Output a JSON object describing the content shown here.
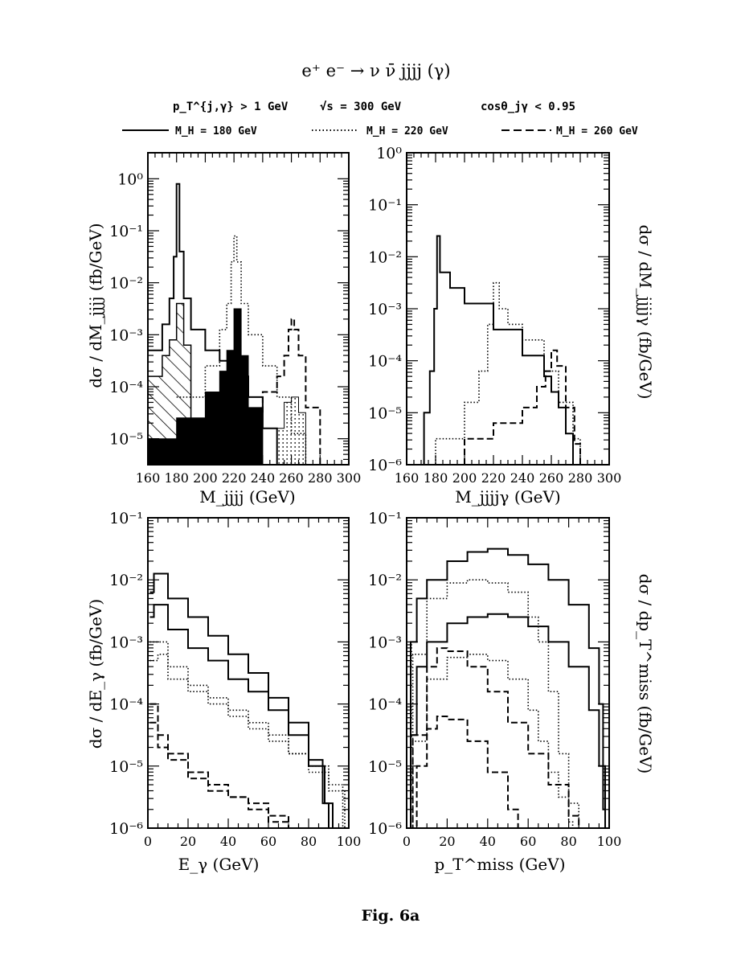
{
  "header": {
    "title": "e⁺ e⁻ → ν ν̄ jjjj (γ)",
    "cut_pt": "p_T^{j,γ} > 1 GeV",
    "cut_sqrt_s": "√s = 300 GeV",
    "cut_cos": "cosθ_jγ < 0.95"
  },
  "legend": [
    {
      "label": "M_H = 180 GeV",
      "style": "solid"
    },
    {
      "label": "M_H = 220 GeV",
      "style": "dotted"
    },
    {
      "label": "M_H = 260 GeV",
      "style": "dashed"
    }
  ],
  "caption": "Fig. 6a",
  "chart_data": [
    {
      "type": "line",
      "id": "mjjjj",
      "xlabel": "M_jjjj (GeV)",
      "ylabel": "dσ / dM_jjjj (fb/GeV)",
      "xlim": [
        160,
        300
      ],
      "ylim_log10": [
        -5.5,
        0.5
      ],
      "yscale": "log",
      "xticks": [
        160,
        180,
        200,
        220,
        240,
        260,
        280,
        300
      ],
      "yticks": [
        {
          "label": "10⁰",
          "exp": 0
        },
        {
          "label": "10⁻¹",
          "exp": -1
        },
        {
          "label": "10⁻²",
          "exp": -2
        },
        {
          "label": "10⁻³",
          "exp": -3
        },
        {
          "label": "10⁻⁴",
          "exp": -4
        },
        {
          "label": "10⁻⁵",
          "exp": -5
        }
      ],
      "series": [
        {
          "name": "M_H = 180 GeV",
          "style": "solid",
          "x": [
            160,
            170,
            175,
            178,
            180,
            182,
            185,
            190,
            200,
            210,
            220,
            230,
            240,
            250
          ],
          "log10_y": [
            -3.3,
            -2.8,
            -2.3,
            -1.5,
            -0.1,
            -1.4,
            -2.3,
            -2.9,
            -3.3,
            -3.5,
            -3.8,
            -4.2,
            -4.8,
            -5.5
          ]
        },
        {
          "name": "M_H = 220 GeV",
          "style": "dotted",
          "x": [
            180,
            200,
            210,
            215,
            218,
            220,
            222,
            225,
            230,
            240,
            250,
            260,
            270
          ],
          "log10_y": [
            -4.2,
            -3.6,
            -2.9,
            -2.4,
            -1.6,
            -1.1,
            -1.6,
            -2.4,
            -3.0,
            -3.6,
            -4.2,
            -4.9,
            -5.5
          ]
        },
        {
          "name": "M_H = 260 GeV",
          "style": "dashed",
          "x": [
            220,
            240,
            250,
            255,
            258,
            260,
            262,
            265,
            270,
            280
          ],
          "log10_y": [
            -4.5,
            -4.1,
            -3.8,
            -3.4,
            -2.9,
            -2.7,
            -2.9,
            -3.4,
            -4.4,
            -5.5
          ]
        },
        {
          "name": "hatched",
          "style": "hatched",
          "x": [
            160,
            170,
            175,
            180,
            185,
            190
          ],
          "log10_y": [
            -3.8,
            -3.4,
            -3.1,
            -2.4,
            -3.2,
            -4.0
          ]
        },
        {
          "name": "filled",
          "style": "filled",
          "x": [
            160,
            180,
            200,
            210,
            215,
            220,
            225,
            230,
            240
          ],
          "log10_y": [
            -5.0,
            -4.6,
            -4.1,
            -3.7,
            -3.3,
            -2.5,
            -3.4,
            -4.4,
            -5.5
          ]
        },
        {
          "name": "dotted-fill",
          "style": "dotfill",
          "x": [
            240,
            250,
            255,
            260,
            265,
            270
          ],
          "log10_y": [
            -5.5,
            -4.8,
            -4.3,
            -4.2,
            -4.5,
            -5.5
          ]
        }
      ]
    },
    {
      "type": "line",
      "id": "mjjjjg",
      "xlabel": "M_jjjjγ (GeV)",
      "ylabel": "dσ / dM_jjjjγ (fb/GeV)",
      "xlim": [
        160,
        300
      ],
      "ylim_log10": [
        -6,
        0
      ],
      "yscale": "log",
      "xticks": [
        160,
        180,
        200,
        220,
        240,
        260,
        280,
        300
      ],
      "yticks": [
        {
          "label": "10⁰",
          "exp": 0
        },
        {
          "label": "10⁻¹",
          "exp": -1
        },
        {
          "label": "10⁻²",
          "exp": -2
        },
        {
          "label": "10⁻³",
          "exp": -3
        },
        {
          "label": "10⁻⁴",
          "exp": -4
        },
        {
          "label": "10⁻⁵",
          "exp": -5
        },
        {
          "label": "10⁻⁶",
          "exp": -6
        }
      ],
      "series": [
        {
          "name": "M_H = 180 GeV",
          "style": "solid",
          "x": [
            167,
            172,
            176,
            179,
            181,
            183,
            190,
            200,
            220,
            240,
            255,
            260,
            265,
            270,
            275
          ],
          "log10_y": [
            -6.0,
            -5.0,
            -4.2,
            -3.0,
            -1.6,
            -2.3,
            -2.6,
            -2.9,
            -3.4,
            -3.9,
            -4.3,
            -4.6,
            -4.9,
            -5.4,
            -6.0
          ]
        },
        {
          "name": "M_H = 220 GeV",
          "style": "dotted",
          "x": [
            165,
            180,
            200,
            210,
            216,
            220,
            224,
            230,
            240,
            255,
            265,
            275,
            280
          ],
          "log10_y": [
            -6.0,
            -5.5,
            -4.8,
            -4.2,
            -3.3,
            -2.5,
            -3.0,
            -3.3,
            -3.6,
            -4.2,
            -4.8,
            -5.5,
            -6.0
          ]
        },
        {
          "name": "M_H = 260 GeV",
          "style": "dashed",
          "x": [
            180,
            200,
            220,
            240,
            250,
            256,
            260,
            264,
            270,
            276,
            280
          ],
          "log10_y": [
            -6.0,
            -5.5,
            -5.2,
            -4.9,
            -4.5,
            -4.2,
            -3.8,
            -4.1,
            -4.9,
            -5.6,
            -6.0
          ]
        }
      ]
    },
    {
      "type": "line",
      "id": "egamma",
      "xlabel": "E_γ (GeV)",
      "ylabel": "dσ / dE_γ (fb/GeV)",
      "xlim": [
        0,
        100
      ],
      "ylim_log10": [
        -6,
        -1
      ],
      "yscale": "log",
      "xticks": [
        0,
        20,
        40,
        60,
        80,
        100
      ],
      "yticks": [
        {
          "label": "10⁻¹",
          "exp": -1
        },
        {
          "label": "10⁻²",
          "exp": -2
        },
        {
          "label": "10⁻³",
          "exp": -3
        },
        {
          "label": "10⁻⁴",
          "exp": -4
        },
        {
          "label": "10⁻⁵",
          "exp": -5
        },
        {
          "label": "10⁻⁶",
          "exp": -6
        }
      ],
      "series": [
        {
          "name": "M_H = 180 GeV",
          "style": "solid",
          "x": [
            1,
            3,
            10,
            20,
            30,
            40,
            50,
            60,
            70,
            80,
            87,
            90
          ],
          "log10_y": [
            -2.2,
            -1.9,
            -2.3,
            -2.6,
            -2.9,
            -3.2,
            -3.5,
            -3.9,
            -4.3,
            -4.9,
            -5.6,
            -6.0
          ]
        },
        {
          "name": "M_H = 180 GeV (b)",
          "style": "solid",
          "x": [
            1,
            3,
            10,
            20,
            30,
            40,
            50,
            60,
            70,
            80,
            88,
            92
          ],
          "log10_y": [
            -2.6,
            -2.4,
            -2.8,
            -3.1,
            -3.3,
            -3.6,
            -3.8,
            -4.1,
            -4.5,
            -5.0,
            -5.6,
            -6.0
          ]
        },
        {
          "name": "M_H = 220 GeV",
          "style": "dotted",
          "x": [
            1,
            5,
            10,
            20,
            30,
            40,
            50,
            60,
            70,
            80,
            90,
            97
          ],
          "log10_y": [
            -3.0,
            -3.0,
            -3.4,
            -3.7,
            -3.9,
            -4.1,
            -4.3,
            -4.5,
            -4.8,
            -5.0,
            -5.3,
            -6.0
          ]
        },
        {
          "name": "M_H = 220 GeV (b)",
          "style": "dotted",
          "x": [
            1,
            5,
            10,
            20,
            30,
            40,
            50,
            60,
            70,
            80,
            90,
            98
          ],
          "log10_y": [
            -3.3,
            -3.2,
            -3.6,
            -3.8,
            -4.0,
            -4.2,
            -4.4,
            -4.6,
            -4.8,
            -5.1,
            -5.4,
            -6.0
          ]
        },
        {
          "name": "M_H = 260 GeV",
          "style": "dashed",
          "x": [
            1,
            5,
            10,
            20,
            30,
            40,
            50,
            60,
            70,
            75
          ],
          "log10_y": [
            -4.0,
            -4.5,
            -4.8,
            -5.1,
            -5.3,
            -5.5,
            -5.6,
            -5.8,
            -6.0,
            -6.0
          ]
        },
        {
          "name": "M_H = 260 GeV (b)",
          "style": "dashed",
          "x": [
            1,
            5,
            10,
            20,
            30,
            40,
            50,
            60,
            70,
            72
          ],
          "log10_y": [
            -4.3,
            -4.7,
            -4.9,
            -5.2,
            -5.4,
            -5.5,
            -5.7,
            -5.9,
            -6.0,
            -6.0
          ]
        }
      ]
    },
    {
      "type": "line",
      "id": "ptmiss",
      "xlabel": "p_T^miss (GeV)",
      "ylabel": "dσ / dp_T^miss (fb/GeV)",
      "xlim": [
        0,
        100
      ],
      "ylim_log10": [
        -6,
        -1
      ],
      "yscale": "log",
      "xticks": [
        0,
        20,
        40,
        60,
        80,
        100
      ],
      "yticks": [
        {
          "label": "10⁻¹",
          "exp": -1
        },
        {
          "label": "10⁻²",
          "exp": -2
        },
        {
          "label": "10⁻³",
          "exp": -3
        },
        {
          "label": "10⁻⁴",
          "exp": -4
        },
        {
          "label": "10⁻⁵",
          "exp": -5
        },
        {
          "label": "10⁻⁶",
          "exp": -6
        }
      ],
      "series": [
        {
          "name": "M_H = 180 GeV",
          "style": "solid",
          "x": [
            1,
            2,
            5,
            10,
            20,
            30,
            40,
            50,
            60,
            70,
            80,
            90,
            95,
            97,
            98
          ],
          "log10_y": [
            -6.0,
            -3.0,
            -2.3,
            -2.0,
            -1.7,
            -1.55,
            -1.5,
            -1.6,
            -1.75,
            -2.0,
            -2.4,
            -3.1,
            -4.0,
            -5.0,
            -6.0
          ]
        },
        {
          "name": "M_H = 180 GeV (b)",
          "style": "solid",
          "x": [
            1,
            2,
            5,
            10,
            20,
            30,
            40,
            50,
            60,
            70,
            80,
            90,
            95,
            97,
            98
          ],
          "log10_y": [
            -6.0,
            -4.5,
            -3.4,
            -3.0,
            -2.7,
            -2.6,
            -2.55,
            -2.6,
            -2.75,
            -3.0,
            -3.4,
            -4.1,
            -5.0,
            -5.7,
            -6.0
          ]
        },
        {
          "name": "M_H = 220 GeV",
          "style": "dotted",
          "x": [
            1,
            3,
            10,
            20,
            30,
            40,
            50,
            60,
            65,
            70,
            75,
            80,
            85
          ],
          "log10_y": [
            -6.0,
            -3.2,
            -2.3,
            -2.05,
            -2.0,
            -2.05,
            -2.2,
            -2.6,
            -3.0,
            -3.8,
            -4.8,
            -5.6,
            -6.0
          ]
        },
        {
          "name": "M_H = 220 GeV (b)",
          "style": "dotted",
          "x": [
            1,
            3,
            10,
            20,
            30,
            40,
            50,
            60,
            65,
            70,
            75,
            80,
            82
          ],
          "log10_y": [
            -6.0,
            -4.6,
            -3.6,
            -3.25,
            -3.2,
            -3.3,
            -3.6,
            -4.1,
            -4.6,
            -5.1,
            -5.5,
            -5.9,
            -6.0
          ]
        },
        {
          "name": "M_H = 260 GeV",
          "style": "dashed",
          "x": [
            1,
            3,
            10,
            15,
            20,
            30,
            40,
            50,
            60,
            70,
            80,
            85
          ],
          "log10_y": [
            -6.0,
            -4.5,
            -3.4,
            -3.1,
            -3.15,
            -3.4,
            -3.8,
            -4.3,
            -4.8,
            -5.3,
            -5.8,
            -6.0
          ]
        },
        {
          "name": "M_H = 260 GeV (b)",
          "style": "dashed",
          "x": [
            1,
            5,
            10,
            15,
            20,
            30,
            40,
            50,
            55
          ],
          "log10_y": [
            -6.0,
            -5.0,
            -4.4,
            -4.2,
            -4.25,
            -4.6,
            -5.1,
            -5.7,
            -6.0
          ]
        }
      ]
    }
  ]
}
